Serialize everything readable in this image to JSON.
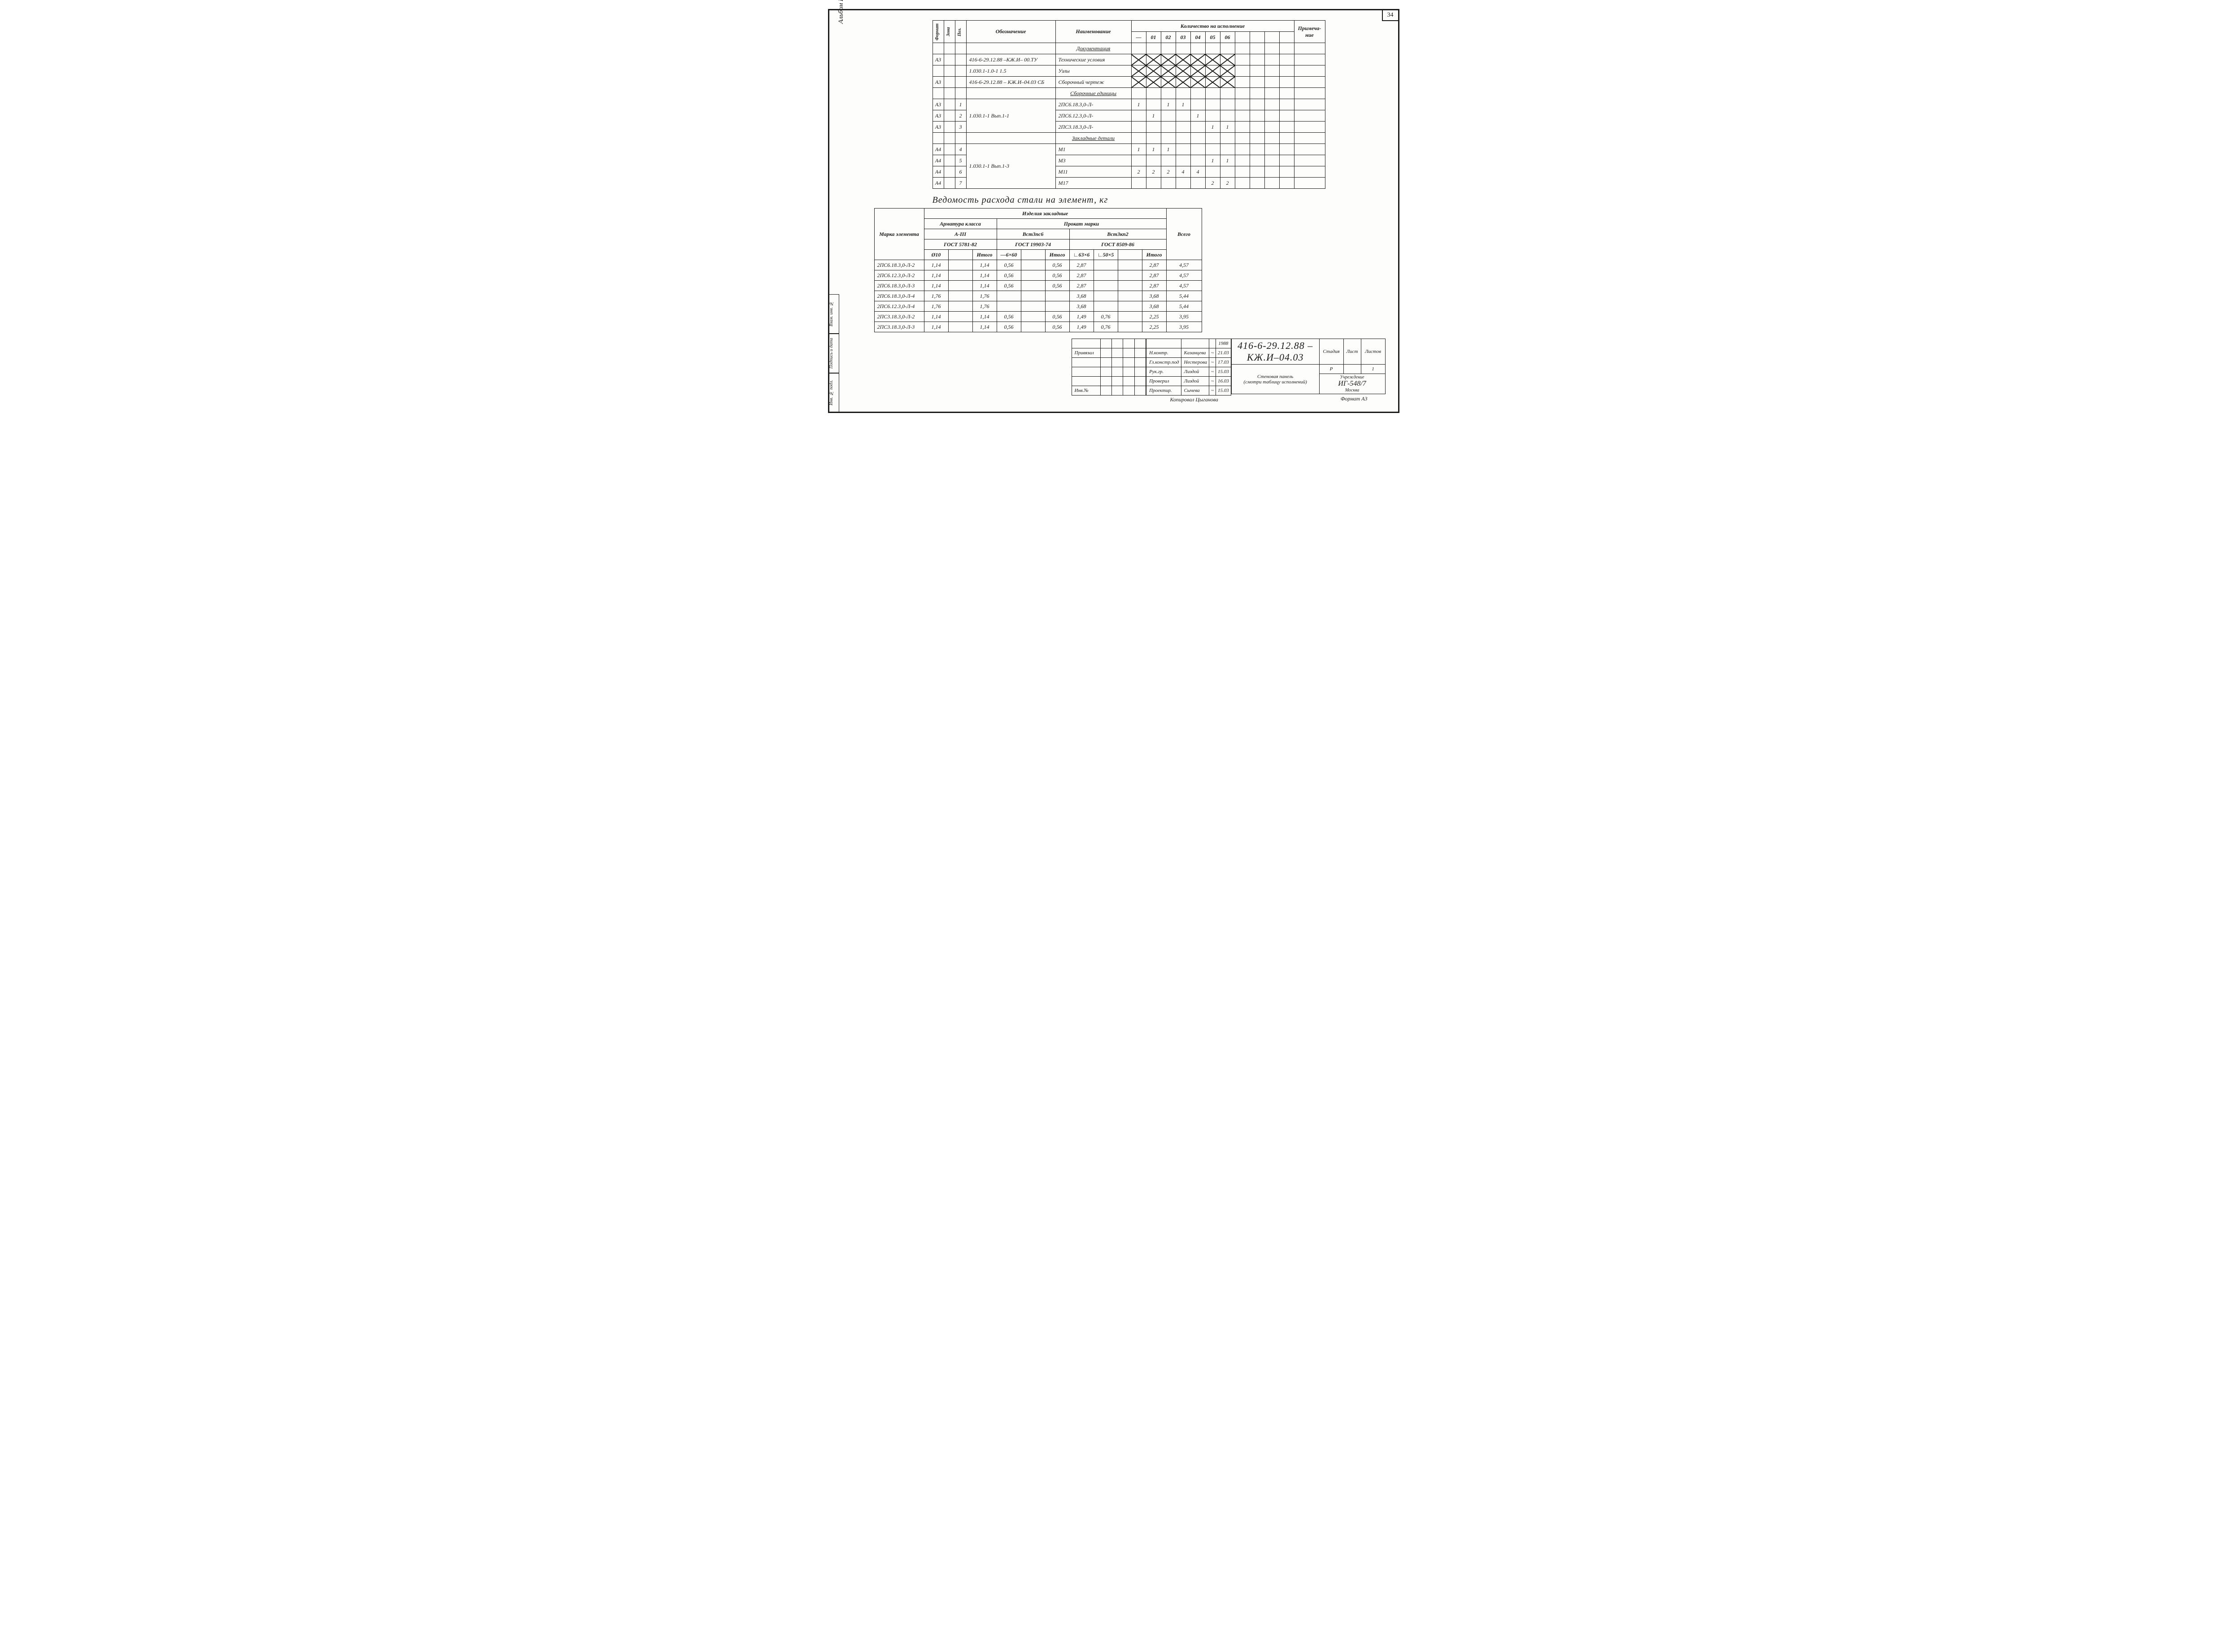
{
  "page_number": "34",
  "album": "Альбом IV",
  "left_stamp": [
    "Инв. № подл.",
    "Подпись и дата",
    "Взам. инв. №"
  ],
  "spec": {
    "head": {
      "format": "Формат",
      "zona": "Зона",
      "poz": "Поз.",
      "oboz": "Обозначение",
      "naim": "Наименование",
      "qty": "Количество на исполнение",
      "prim": "Примеча-\nние",
      "cols": [
        "—",
        "01",
        "02",
        "03",
        "04",
        "05",
        "06"
      ]
    },
    "rows": [
      {
        "f": "",
        "z": "",
        "p": "",
        "o": "",
        "n": "Документация",
        "u": true,
        "q": [
          "",
          "",
          "",
          "",
          "",
          "",
          ""
        ]
      },
      {
        "f": "А3",
        "z": "",
        "p": "",
        "o": "416-6-29.12.88 –КЖ.И– 00.ТУ",
        "n": "Технические условия",
        "x": true,
        "q": []
      },
      {
        "f": "",
        "z": "",
        "p": "",
        "o": "1.030.1-1.0-1            1.5",
        "n": "Узлы",
        "x": true,
        "q": []
      },
      {
        "f": "А3",
        "z": "",
        "p": "",
        "o": "416-6-29.12.88 – КЖ.И–04.03 СБ",
        "n": "Сборочный  чертеж",
        "x": true,
        "q": []
      },
      {
        "f": "",
        "z": "",
        "p": "",
        "o": "",
        "n": "Сборочные единицы",
        "u": true,
        "q": [
          "",
          "",
          "",
          "",
          "",
          "",
          ""
        ]
      },
      {
        "f": "А3",
        "z": "",
        "p": "1",
        "o": "",
        "n": "2ПС6.18.3,0-Л-",
        "q": [
          "1",
          "",
          "1",
          "1",
          "",
          "",
          ""
        ]
      },
      {
        "f": "А3",
        "z": "",
        "p": "2",
        "o": "1.030.1-1     Вып.1-1",
        "n": "2ПС6.12.3,0-Л-",
        "q": [
          "",
          "1",
          "",
          "",
          "1",
          "",
          ""
        ]
      },
      {
        "f": "А3",
        "z": "",
        "p": "3",
        "o": "",
        "n": "2ПС3.18.3,0-Л-",
        "q": [
          "",
          "",
          "",
          "",
          "",
          "1",
          "1"
        ]
      },
      {
        "f": "",
        "z": "",
        "p": "",
        "o": "",
        "n": "Закладные детали",
        "u": true,
        "q": [
          "",
          "",
          "",
          "",
          "",
          "",
          ""
        ]
      },
      {
        "f": "А4",
        "z": "",
        "p": "4",
        "o": "",
        "n": "М1",
        "q": [
          "1",
          "1",
          "1",
          "",
          "",
          "",
          ""
        ]
      },
      {
        "f": "А4",
        "z": "",
        "p": "5",
        "o": "1.030.1-1     Вып.1-3",
        "n": "М3",
        "q": [
          "",
          "",
          "",
          "",
          "",
          "1",
          "1"
        ]
      },
      {
        "f": "А4",
        "z": "",
        "p": "6",
        "o": "",
        "n": "М11",
        "q": [
          "2",
          "2",
          "2",
          "4",
          "4",
          "",
          ""
        ]
      },
      {
        "f": "А4",
        "z": "",
        "p": "7",
        "o": "",
        "n": "М17",
        "q": [
          "",
          "",
          "",
          "",
          "",
          "2",
          "2"
        ]
      }
    ]
  },
  "steel_title": "Ведомость    расхода  стали  на  элемент, кг",
  "steel": {
    "head": {
      "marka": "Марка\nэлемента",
      "izd": "Изделия   закладные",
      "arm": "Арматура класса",
      "a3": "А-III",
      "gost_a": "ГОСТ 5781-82",
      "prokat": "Прокат  марки",
      "vst_ps": "Вст3пс6",
      "gost_ps": "ГОСТ 19903-74",
      "vst_kp": "Вст3кп2",
      "gost_kp": "ГОСТ 8509-86",
      "vsego": "Всего",
      "d10": "Ø10",
      "it": "Итого",
      "b60": "—6×60",
      "l63": "∟63×6",
      "l50": "∟50×5"
    },
    "rows": [
      {
        "m": "2ПС6.18.3,0-Л-2",
        "d10": "1,14",
        "ai": "1,14",
        "b60": "0,56",
        "pi": "0,56",
        "l63": "2,87",
        "l50": "",
        "ki": "2,87",
        "t": "4,57"
      },
      {
        "m": "2ПС6.12.3,0-Л-2",
        "d10": "1,14",
        "ai": "1,14",
        "b60": "0,56",
        "pi": "0,56",
        "l63": "2,87",
        "l50": "",
        "ki": "2,87",
        "t": "4,57"
      },
      {
        "m": "2ПС6.18.3,0-Л-3",
        "d10": "1,14",
        "ai": "1,14",
        "b60": "0,56",
        "pi": "0,56",
        "l63": "2,87",
        "l50": "",
        "ki": "2,87",
        "t": "4,57"
      },
      {
        "m": "2ПС6.18.3,0-Л-4",
        "d10": "1,76",
        "ai": "1,76",
        "b60": "",
        "pi": "",
        "l63": "3,68",
        "l50": "",
        "ki": "3,68",
        "t": "5,44"
      },
      {
        "m": "2ПС6.12.3,0-Л-4",
        "d10": "1,76",
        "ai": "1,76",
        "b60": "",
        "pi": "",
        "l63": "3,68",
        "l50": "",
        "ki": "3,68",
        "t": "5,44"
      },
      {
        "m": "2ПС3.18.3,0-Л-2",
        "d10": "1,14",
        "ai": "1,14",
        "b60": "0,56",
        "pi": "0,56",
        "l63": "1,49",
        "l50": "0,76",
        "ki": "2,25",
        "t": "3,95"
      },
      {
        "m": "2ПС3.18.3,0-Л-3",
        "d10": "1,14",
        "ai": "1,14",
        "b60": "0,56",
        "pi": "0,56",
        "l63": "1,49",
        "l50": "0,76",
        "ki": "2,25",
        "t": "3,95"
      }
    ]
  },
  "title_block": {
    "priv": "Привязал",
    "inv": "Инв.№",
    "code": "416-6-29.12.88 – КЖ.И–04.03",
    "name1": "Стеновая панель",
    "name2": "(смотри таблицу исполнений)",
    "year": "1988",
    "roles": [
      [
        "Н.контр.",
        "Казанцева",
        "21.03"
      ],
      [
        "Гл.констр.под",
        "Нестерова",
        "17.03"
      ],
      [
        "Рук.гр.",
        "Лиздой",
        "15.03"
      ],
      [
        "Проверил",
        "Лиздой",
        "16.03"
      ],
      [
        "Проектир.",
        "Сычева",
        "15.03"
      ]
    ],
    "stadia_h": "Стадия",
    "list_h": "Лист",
    "listov_h": "Листов",
    "stadia": "Р",
    "list": "",
    "listov": "1",
    "org_h": "Учреждение",
    "org": "ИГ-548/7",
    "city": "Москва",
    "copied": "Копировал Цыганова",
    "format": "Формат А3"
  },
  "colors": {
    "line": "#1a1a1a",
    "bg": "#fdfdfb"
  }
}
